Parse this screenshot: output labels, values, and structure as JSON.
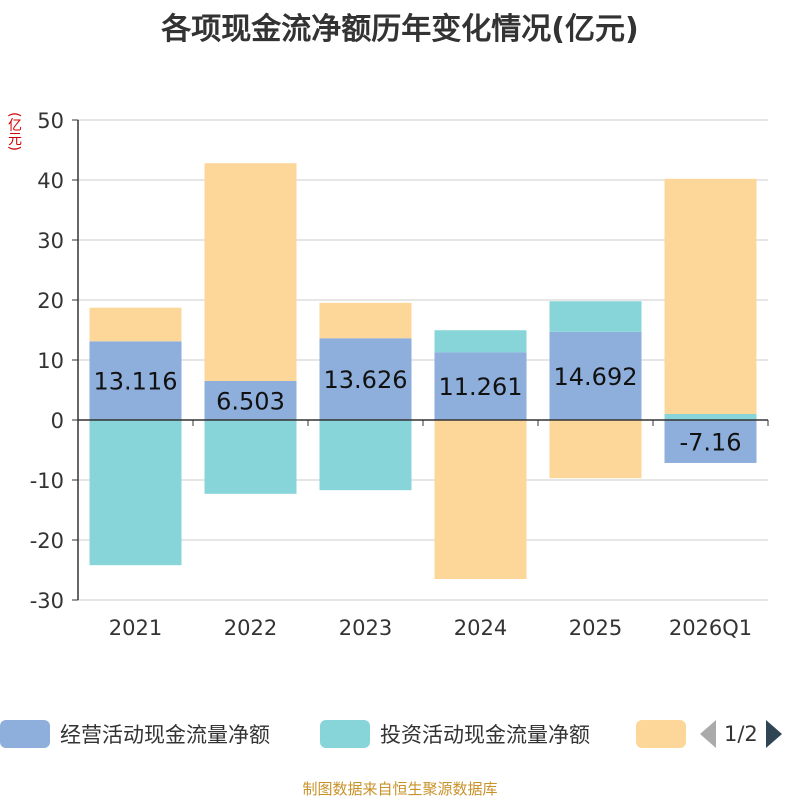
{
  "title": "各项现金流净额历年变化情况(亿元)",
  "unit_label": "(亿元)",
  "source": "制图数据来自恒生聚源数据库",
  "pager": {
    "text": "1/2"
  },
  "chart_data": {
    "type": "bar",
    "stacked": true,
    "categories": [
      "2021",
      "2022",
      "2023",
      "2024",
      "2025",
      "2026Q1"
    ],
    "ylim": [
      -30,
      50
    ],
    "yticks": [
      -30,
      -20,
      -10,
      0,
      10,
      20,
      30,
      40,
      50
    ],
    "ylabel": "(亿元)",
    "series": [
      {
        "name": "经营活动现金流量净额",
        "color": "#8eaedb",
        "values": [
          13.116,
          6.503,
          13.626,
          11.261,
          14.692,
          -7.16
        ],
        "labels": [
          "13.116",
          "6.503",
          "13.626",
          "11.261",
          "14.692",
          "-7.16"
        ]
      },
      {
        "name": "投资活动现金流量净额",
        "color": "#87d5d8",
        "values": [
          -24.2,
          -12.3,
          -11.7,
          3.7,
          5.1,
          1.0
        ]
      },
      {
        "name": "",
        "color": "#fdd799",
        "values": [
          5.6,
          36.3,
          5.9,
          -26.5,
          -9.7,
          39.2
        ]
      }
    ]
  }
}
